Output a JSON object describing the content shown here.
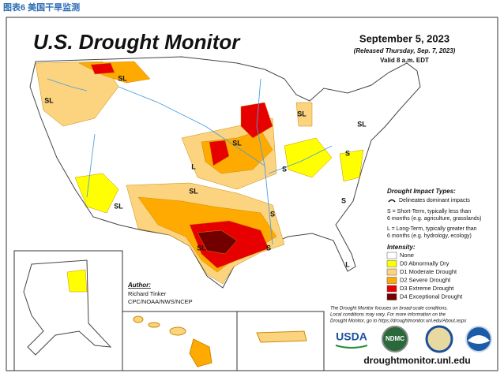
{
  "caption": "图表6 美国干旱监测",
  "title": "U.S. Drought Monitor",
  "date": "September 5, 2023",
  "released": "(Released Thursday, Sep. 7, 2023)",
  "valid": "Valid 8 a.m. EDT",
  "impact": {
    "heading": "Drought Impact Types:",
    "delineates": "Delineates dominant impacts",
    "short": [
      "S = Short-Term, typically less than",
      "6 months (e.g. agriculture, grasslands)"
    ],
    "long": [
      "L = Long-Term, typically greater than",
      "6 months (e.g. hydrology, ecology)"
    ]
  },
  "intensity": {
    "heading": "Intensity:",
    "items": [
      {
        "label": "None",
        "color": "#ffffff"
      },
      {
        "label": "D0 Abnormally Dry",
        "color": "#ffff00"
      },
      {
        "label": "D1 Moderate Drought",
        "color": "#fcd37f"
      },
      {
        "label": "D2 Severe Drought",
        "color": "#ffaa00"
      },
      {
        "label": "D3 Extreme Drought",
        "color": "#e60000"
      },
      {
        "label": "D4 Exceptional Drought",
        "color": "#730000"
      }
    ]
  },
  "author": [
    "Author:",
    "Richard Tinker",
    "CPC/NOAA/NWS/NCEP"
  ],
  "note": [
    "The Drought Monitor focuses on broad-scale conditions.",
    "Local conditions may vary. For more information on the",
    "Drought Monitor, go to https://droughtmonitor.unl.edu/About.aspx"
  ],
  "website": "droughtmonitor.unl.edu",
  "logos": [
    "USDA",
    "NDMC"
  ],
  "map_labels": [
    "SL",
    "SL",
    "SL",
    "SL",
    "SL",
    "L",
    "SL",
    "SL",
    "S",
    "S",
    "S",
    "L",
    "SL",
    "S",
    "S",
    "S",
    "S",
    "L"
  ]
}
